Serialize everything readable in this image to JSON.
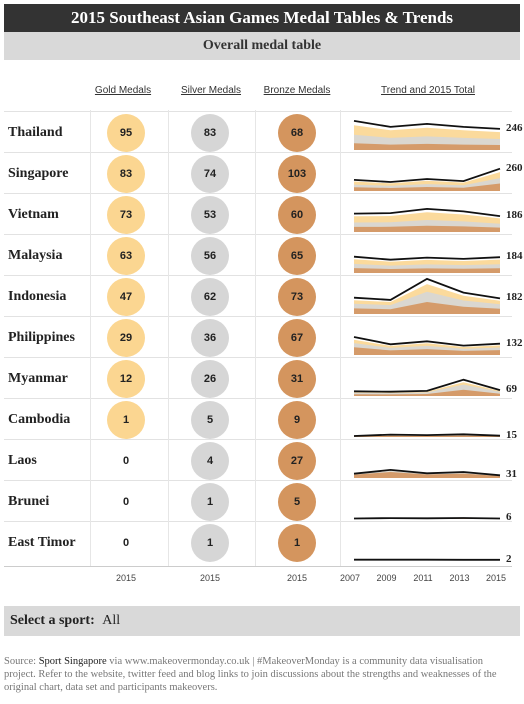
{
  "header": {
    "title": "2015 Southeast Asian Games Medal Tables & Trends",
    "subtitle": "Overall medal table"
  },
  "columns": {
    "gold": "Gold Medals",
    "silver": "Silver Medals",
    "bronze": "Bronze Medals",
    "trend": "Trend and 2015 Total"
  },
  "colors": {
    "gold": "#fbd691",
    "silver": "#d6d6d6",
    "bronze": "#d4955e",
    "line": "#111111"
  },
  "chart_data": {
    "type": "table",
    "years": [
      "2007",
      "2009",
      "2011",
      "2013",
      "2015"
    ],
    "medal_year": "2015",
    "rows": [
      {
        "country": "Thailand",
        "gold": 95,
        "silver": 83,
        "bronze": 68,
        "total": 246,
        "trend_total": [
          340,
          270,
          305,
          270,
          246
        ]
      },
      {
        "country": "Singapore",
        "gold": 83,
        "silver": 74,
        "bronze": 103,
        "total": 260,
        "trend_total": [
          130,
          105,
          140,
          115,
          260
        ]
      },
      {
        "country": "Vietnam",
        "gold": 73,
        "silver": 53,
        "bronze": 60,
        "total": 186,
        "trend_total": [
          215,
          220,
          270,
          240,
          186
        ]
      },
      {
        "country": "Malaysia",
        "gold": 63,
        "silver": 56,
        "bronze": 65,
        "total": 184,
        "trend_total": [
          190,
          155,
          180,
          165,
          184
        ]
      },
      {
        "country": "Indonesia",
        "gold": 47,
        "silver": 62,
        "bronze": 73,
        "total": 182,
        "trend_total": [
          190,
          165,
          410,
          250,
          182
        ]
      },
      {
        "country": "Philippines",
        "gold": 29,
        "silver": 36,
        "bronze": 67,
        "total": 132,
        "trend_total": [
          210,
          125,
          160,
          110,
          132
        ]
      },
      {
        "country": "Myanmar",
        "gold": 12,
        "silver": 26,
        "bronze": 31,
        "total": 69,
        "trend_total": [
          55,
          50,
          60,
          190,
          69
        ]
      },
      {
        "country": "Cambodia",
        "gold": 1,
        "silver": 5,
        "bronze": 9,
        "total": 15,
        "trend_total": [
          12,
          28,
          22,
          32,
          15
        ]
      },
      {
        "country": "Laos",
        "gold": 0,
        "silver": 4,
        "bronze": 27,
        "total": 31,
        "trend_total": [
          50,
          95,
          55,
          70,
          31
        ]
      },
      {
        "country": "Brunei",
        "gold": 0,
        "silver": 1,
        "bronze": 5,
        "total": 6,
        "trend_total": [
          6,
          10,
          8,
          12,
          6
        ]
      },
      {
        "country": "East Timor",
        "gold": 0,
        "silver": 1,
        "bronze": 1,
        "total": 2,
        "trend_total": [
          3,
          4,
          3,
          2,
          2
        ]
      }
    ]
  },
  "filter": {
    "label": "Select a sport:",
    "value": "All"
  },
  "source": {
    "prefix": "Source: ",
    "name": "Sport Singapore",
    "body": " via www.makeovermonday.co.uk | #MakeoverMonday is a community data visualisation project. Refer to the website, twitter feed and blog links to join discussions about the strengths and weaknesses of the original chart, data set and participants makeovers."
  }
}
